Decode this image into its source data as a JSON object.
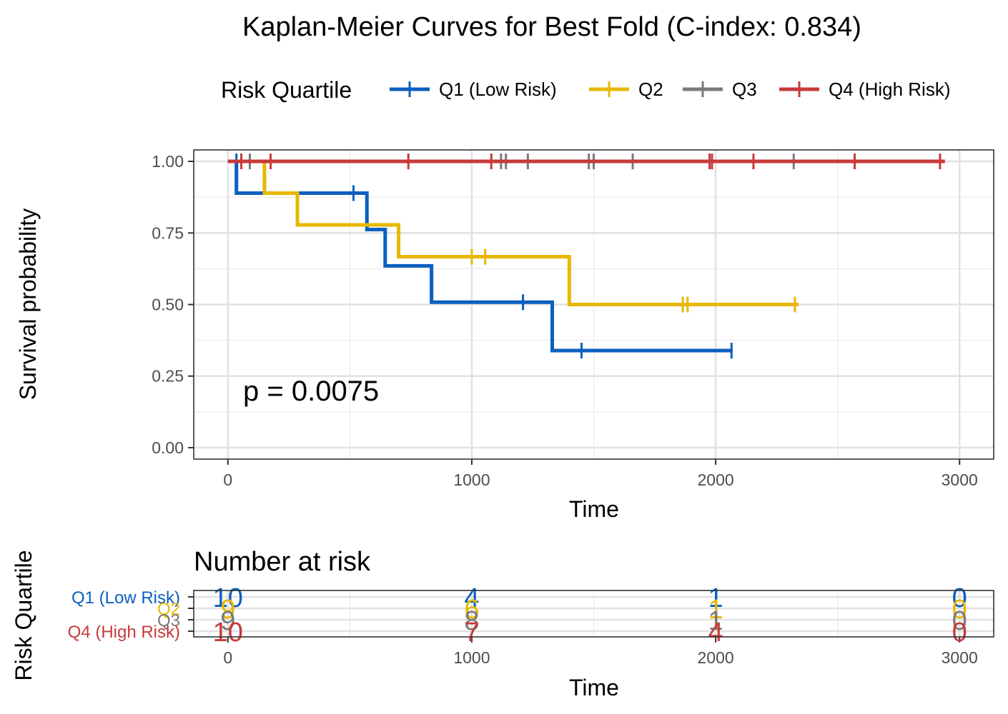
{
  "chart_data": {
    "type": "line",
    "title": "Kaplan-Meier Curves for Best Fold (C-index: 0.834)",
    "xlabel": "Time",
    "ylabel": "Survival probability",
    "xlim": [
      -140,
      3140
    ],
    "ylim": [
      -0.04,
      1.04
    ],
    "xticks": [
      0,
      1000,
      2000,
      3000
    ],
    "xtick_labels": [
      "0",
      "1000",
      "2000",
      "3000"
    ],
    "yticks": [
      0,
      0.25,
      0.5,
      0.75,
      1
    ],
    "ytick_labels": [
      "0.00",
      "0.25",
      "0.50",
      "0.75",
      "1.00"
    ],
    "grid": true,
    "legend": {
      "title": "Risk Quartile",
      "placement": "top"
    },
    "annotation": "p = 0.0075",
    "series": [
      {
        "name": "Q1 (Low Risk)",
        "color": "#0b5fbf",
        "steps": [
          [
            0,
            1.0
          ],
          [
            35,
            0.889
          ],
          [
            570,
            0.762
          ],
          [
            645,
            0.635
          ],
          [
            835,
            0.508
          ],
          [
            1330,
            0.339
          ],
          [
            2070,
            0.339
          ]
        ],
        "censors": [
          [
            35,
            1.0
          ],
          [
            515,
            0.889
          ],
          [
            1210,
            0.508
          ],
          [
            1450,
            0.339
          ],
          [
            2065,
            0.339
          ]
        ]
      },
      {
        "name": "Q2",
        "color": "#e7b800",
        "steps": [
          [
            0,
            1.0
          ],
          [
            150,
            0.889
          ],
          [
            285,
            0.778
          ],
          [
            700,
            0.667
          ],
          [
            1400,
            0.5
          ],
          [
            2340,
            0.5
          ]
        ],
        "censors": [
          [
            1000,
            0.667
          ],
          [
            1055,
            0.667
          ],
          [
            1865,
            0.5
          ],
          [
            1885,
            0.5
          ],
          [
            2325,
            0.5
          ]
        ]
      },
      {
        "name": "Q3",
        "color": "#7a7a7a",
        "steps": [
          [
            0,
            1.0
          ],
          [
            2330,
            1.0
          ]
        ],
        "censors": [
          [
            90,
            1.0
          ],
          [
            1120,
            1.0
          ],
          [
            1140,
            1.0
          ],
          [
            1230,
            1.0
          ],
          [
            1480,
            1.0
          ],
          [
            1500,
            1.0
          ],
          [
            1660,
            1.0
          ],
          [
            2320,
            1.0
          ]
        ]
      },
      {
        "name": "Q4 (High Risk)",
        "color": "#c73a3a",
        "steps": [
          [
            0,
            1.0
          ],
          [
            2940,
            1.0
          ]
        ],
        "censors": [
          [
            55,
            1.0
          ],
          [
            175,
            1.0
          ],
          [
            740,
            1.0
          ],
          [
            1080,
            1.0
          ],
          [
            1975,
            1.0
          ],
          [
            1985,
            1.0
          ],
          [
            2155,
            1.0
          ],
          [
            2570,
            1.0
          ],
          [
            2920,
            1.0
          ]
        ]
      }
    ],
    "risk_table": {
      "title": "Number at risk",
      "xlabel": "Time",
      "ylabel": "Risk Quartile",
      "times": [
        0,
        1000,
        2000,
        3000
      ],
      "xtick_labels": [
        "0",
        "1000",
        "2000",
        "3000"
      ],
      "rows": [
        {
          "name": "Q1 (Low Risk)",
          "color": "#0b5fbf",
          "counts": [
            "10",
            "4",
            "1",
            "0"
          ]
        },
        {
          "name": "Q2",
          "color": "#e7b800",
          "counts": [
            "9",
            "6",
            "1",
            "0"
          ]
        },
        {
          "name": "Q3",
          "color": "#7a7a7a",
          "counts": [
            "9",
            "8",
            "1",
            "0"
          ]
        },
        {
          "name": "Q4 (High Risk)",
          "color": "#c73a3a",
          "counts": [
            "10",
            "7",
            "4",
            "0"
          ]
        }
      ]
    }
  }
}
